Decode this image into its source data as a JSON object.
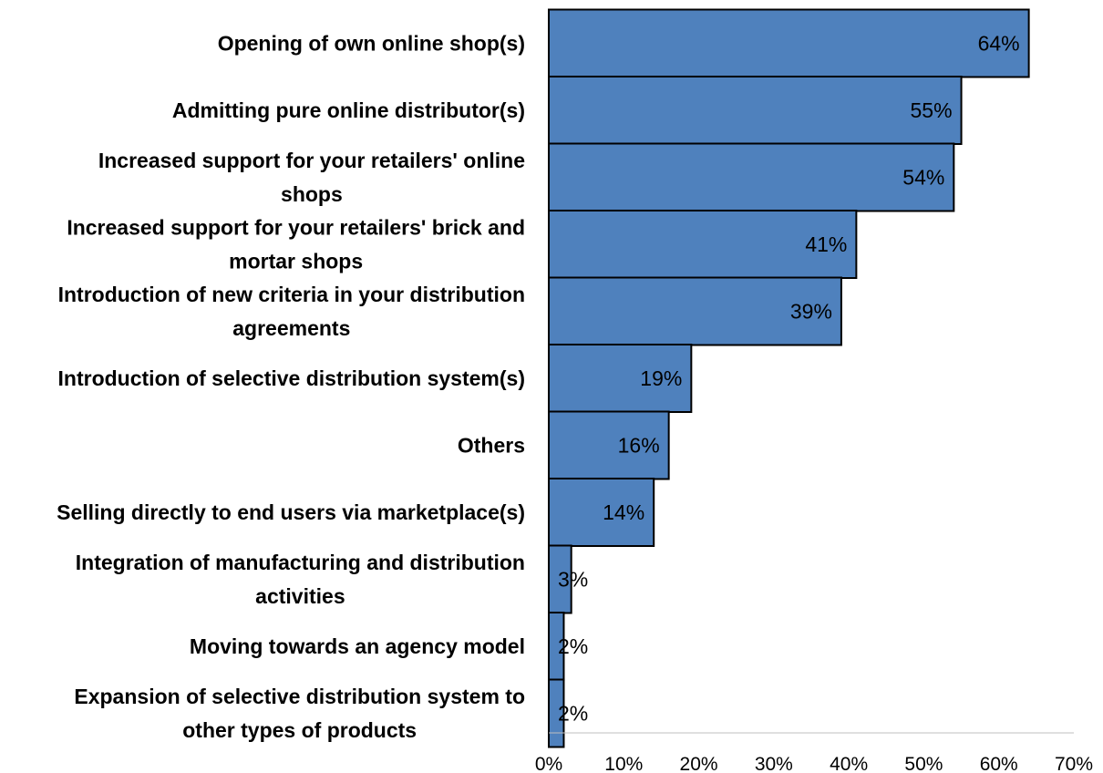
{
  "chart_data": {
    "type": "bar",
    "orientation": "horizontal",
    "categories": [
      [
        "Opening of own online shop(s)"
      ],
      [
        "Admitting pure online distributor(s)"
      ],
      [
        "Increased support for your retailers' online",
        "shops"
      ],
      [
        "Increased support for your retailers' brick and",
        "mortar shops"
      ],
      [
        "Introduction of new criteria in your distribution",
        "agreements"
      ],
      [
        "Introduction of selective distribution system(s)"
      ],
      [
        "Others"
      ],
      [
        "Selling directly to end users via marketplace(s)"
      ],
      [
        "Integration of manufacturing and distribution",
        "activities"
      ],
      [
        "Moving towards an agency model"
      ],
      [
        "Expansion of selective distribution system to",
        "other types of products"
      ]
    ],
    "values": [
      64,
      55,
      54,
      41,
      39,
      19,
      16,
      14,
      3,
      2,
      2
    ],
    "value_labels": [
      "64%",
      "55%",
      "54%",
      "41%",
      "39%",
      "19%",
      "16%",
      "14%",
      "3%",
      "2%",
      "2%"
    ],
    "xlim": [
      0,
      70
    ],
    "xticks": [
      0,
      10,
      20,
      30,
      40,
      50,
      60,
      70
    ],
    "xtick_labels": [
      "0%",
      "10%",
      "20%",
      "30%",
      "40%",
      "50%",
      "60%",
      "70%"
    ],
    "bar_color": "#4f81bd",
    "bar_edge_color": "#000000",
    "grid": false,
    "legend": false
  }
}
